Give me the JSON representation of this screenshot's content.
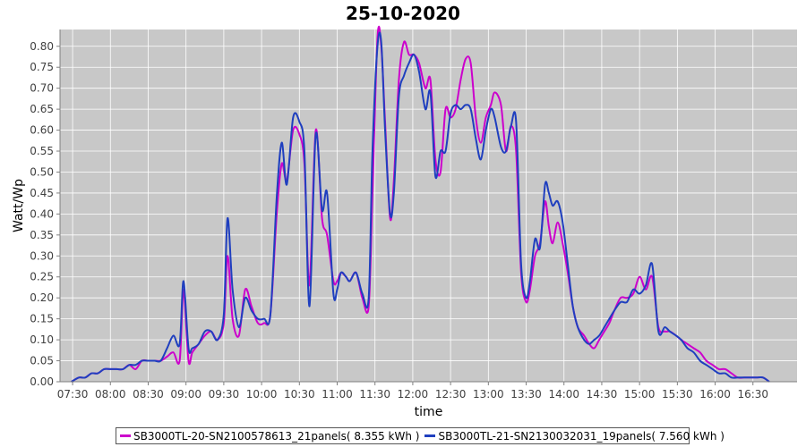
{
  "chart_data": {
    "type": "line",
    "title": "25-10-2020",
    "xlabel": "time",
    "ylabel": "Watt/Wp",
    "ylim": [
      0,
      0.84
    ],
    "xlim": [
      "07:20",
      "17:05"
    ],
    "grid": true,
    "legend_position": "bottom",
    "background": "#c8c8c8",
    "gridline_color": "#ffffff",
    "x_ticks": [
      "07:30",
      "08:00",
      "08:30",
      "09:00",
      "09:30",
      "10:00",
      "10:30",
      "11:00",
      "11:30",
      "12:00",
      "12:30",
      "13:00",
      "13:30",
      "14:00",
      "14:30",
      "15:00",
      "15:30",
      "16:00",
      "16:30"
    ],
    "y_ticks": [
      "0.00",
      "0.05",
      "0.10",
      "0.15",
      "0.20",
      "0.25",
      "0.30",
      "0.35",
      "0.40",
      "0.45",
      "0.50",
      "0.55",
      "0.60",
      "0.65",
      "0.70",
      "0.75",
      "0.80"
    ],
    "series": [
      {
        "name": "SB3000TL-20-SN2100578613_21panels( 8.355 kWh )",
        "color": "#cc00cc",
        "x": [
          "07:29",
          "07:35",
          "07:40",
          "07:45",
          "07:50",
          "07:55",
          "08:00",
          "08:05",
          "08:10",
          "08:15",
          "08:20",
          "08:25",
          "08:30",
          "08:35",
          "08:40",
          "08:45",
          "08:50",
          "08:55",
          "08:58",
          "09:02",
          "09:05",
          "09:10",
          "09:15",
          "09:20",
          "09:25",
          "09:30",
          "09:33",
          "09:37",
          "09:42",
          "09:47",
          "09:52",
          "09:57",
          "10:02",
          "10:07",
          "10:12",
          "10:16",
          "10:20",
          "10:25",
          "10:30",
          "10:34",
          "10:38",
          "10:43",
          "10:48",
          "10:52",
          "10:57",
          "11:00",
          "11:03",
          "11:07",
          "11:10",
          "11:15",
          "11:20",
          "11:25",
          "11:28",
          "11:32",
          "11:35",
          "11:38",
          "11:42",
          "11:45",
          "11:49",
          "11:53",
          "11:57",
          "12:01",
          "12:05",
          "12:10",
          "12:14",
          "12:18",
          "12:22",
          "12:26",
          "12:30",
          "12:34",
          "12:38",
          "12:42",
          "12:46",
          "12:50",
          "12:54",
          "12:58",
          "13:02",
          "13:05",
          "13:10",
          "13:14",
          "13:18",
          "13:22",
          "13:26",
          "13:30",
          "13:33",
          "13:37",
          "13:41",
          "13:45",
          "13:48",
          "13:51",
          "13:55",
          "13:59",
          "14:03",
          "14:07",
          "14:11",
          "14:16",
          "14:20",
          "14:24",
          "14:28",
          "14:32",
          "14:36",
          "14:40",
          "14:45",
          "14:50",
          "14:55",
          "15:00",
          "15:05",
          "15:10",
          "15:15",
          "15:20",
          "15:24",
          "15:29",
          "15:33",
          "15:38",
          "15:43",
          "15:48",
          "15:53",
          "15:58",
          "16:03",
          "16:08",
          "16:13",
          "16:18",
          "16:23",
          "16:28",
          "16:33",
          "16:38",
          "16:43"
        ],
        "values": [
          0.0,
          0.01,
          0.01,
          0.02,
          0.02,
          0.03,
          0.03,
          0.03,
          0.03,
          0.04,
          0.03,
          0.05,
          0.05,
          0.05,
          0.05,
          0.06,
          0.07,
          0.05,
          0.22,
          0.05,
          0.07,
          0.09,
          0.11,
          0.12,
          0.1,
          0.14,
          0.3,
          0.15,
          0.11,
          0.22,
          0.18,
          0.14,
          0.14,
          0.16,
          0.4,
          0.52,
          0.48,
          0.6,
          0.59,
          0.52,
          0.23,
          0.6,
          0.39,
          0.35,
          0.24,
          0.24,
          0.26,
          0.25,
          0.24,
          0.26,
          0.2,
          0.18,
          0.45,
          0.82,
          0.8,
          0.62,
          0.39,
          0.48,
          0.72,
          0.81,
          0.78,
          0.78,
          0.76,
          0.7,
          0.72,
          0.53,
          0.5,
          0.65,
          0.63,
          0.65,
          0.72,
          0.77,
          0.76,
          0.63,
          0.57,
          0.63,
          0.66,
          0.69,
          0.66,
          0.55,
          0.61,
          0.55,
          0.26,
          0.19,
          0.22,
          0.3,
          0.33,
          0.43,
          0.37,
          0.33,
          0.38,
          0.33,
          0.26,
          0.18,
          0.13,
          0.11,
          0.09,
          0.08,
          0.1,
          0.12,
          0.14,
          0.17,
          0.2,
          0.2,
          0.21,
          0.25,
          0.22,
          0.25,
          0.13,
          0.12,
          0.12,
          0.11,
          0.1,
          0.09,
          0.08,
          0.07,
          0.05,
          0.04,
          0.03,
          0.03,
          0.02,
          0.01,
          0.01,
          0.01,
          0.01,
          0.01,
          0.0
        ]
      },
      {
        "name": "SB3000TL-21-SN2130032031_19panels( 7.560 kWh )",
        "color": "#1f3fbf",
        "x": [
          "07:29",
          "07:35",
          "07:40",
          "07:45",
          "07:50",
          "07:55",
          "08:00",
          "08:05",
          "08:10",
          "08:15",
          "08:20",
          "08:25",
          "08:30",
          "08:35",
          "08:40",
          "08:45",
          "08:50",
          "08:55",
          "08:58",
          "09:02",
          "09:05",
          "09:10",
          "09:15",
          "09:20",
          "09:25",
          "09:30",
          "09:33",
          "09:37",
          "09:42",
          "09:47",
          "09:52",
          "09:57",
          "10:02",
          "10:07",
          "10:12",
          "10:16",
          "10:20",
          "10:25",
          "10:30",
          "10:34",
          "10:38",
          "10:43",
          "10:48",
          "10:52",
          "10:57",
          "11:00",
          "11:03",
          "11:07",
          "11:10",
          "11:15",
          "11:20",
          "11:25",
          "11:28",
          "11:32",
          "11:35",
          "11:38",
          "11:42",
          "11:45",
          "11:49",
          "11:53",
          "11:57",
          "12:01",
          "12:05",
          "12:10",
          "12:14",
          "12:18",
          "12:22",
          "12:26",
          "12:30",
          "12:34",
          "12:38",
          "12:42",
          "12:46",
          "12:50",
          "12:54",
          "12:58",
          "13:02",
          "13:05",
          "13:10",
          "13:14",
          "13:18",
          "13:22",
          "13:26",
          "13:30",
          "13:33",
          "13:37",
          "13:41",
          "13:45",
          "13:48",
          "13:51",
          "13:55",
          "13:59",
          "14:03",
          "14:07",
          "14:11",
          "14:16",
          "14:20",
          "14:24",
          "14:28",
          "14:32",
          "14:36",
          "14:40",
          "14:45",
          "14:50",
          "14:55",
          "15:00",
          "15:05",
          "15:10",
          "15:15",
          "15:20",
          "15:24",
          "15:29",
          "15:33",
          "15:38",
          "15:43",
          "15:48",
          "15:53",
          "15:58",
          "16:03",
          "16:08",
          "16:13",
          "16:18",
          "16:23",
          "16:28",
          "16:33",
          "16:38",
          "16:43"
        ],
        "values": [
          0.0,
          0.01,
          0.01,
          0.02,
          0.02,
          0.03,
          0.03,
          0.03,
          0.03,
          0.04,
          0.04,
          0.05,
          0.05,
          0.05,
          0.05,
          0.08,
          0.11,
          0.09,
          0.24,
          0.08,
          0.08,
          0.09,
          0.12,
          0.12,
          0.1,
          0.16,
          0.39,
          0.22,
          0.13,
          0.2,
          0.17,
          0.15,
          0.15,
          0.16,
          0.44,
          0.57,
          0.47,
          0.63,
          0.62,
          0.55,
          0.18,
          0.59,
          0.41,
          0.45,
          0.21,
          0.22,
          0.26,
          0.25,
          0.24,
          0.26,
          0.21,
          0.2,
          0.55,
          0.8,
          0.81,
          0.6,
          0.4,
          0.45,
          0.68,
          0.73,
          0.76,
          0.78,
          0.74,
          0.65,
          0.69,
          0.49,
          0.55,
          0.55,
          0.64,
          0.66,
          0.65,
          0.66,
          0.65,
          0.58,
          0.53,
          0.6,
          0.65,
          0.63,
          0.56,
          0.55,
          0.61,
          0.62,
          0.28,
          0.2,
          0.24,
          0.34,
          0.32,
          0.47,
          0.45,
          0.42,
          0.43,
          0.38,
          0.28,
          0.18,
          0.13,
          0.1,
          0.09,
          0.1,
          0.11,
          0.13,
          0.15,
          0.17,
          0.19,
          0.19,
          0.22,
          0.21,
          0.23,
          0.28,
          0.12,
          0.13,
          0.12,
          0.11,
          0.1,
          0.08,
          0.07,
          0.05,
          0.04,
          0.03,
          0.02,
          0.02,
          0.01,
          0.01,
          0.01,
          0.01,
          0.01,
          0.01,
          0.0
        ]
      }
    ]
  }
}
